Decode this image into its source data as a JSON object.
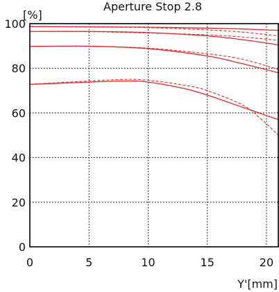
{
  "chart_data": {
    "type": "line",
    "title": "Aperture Stop 2.8",
    "ylabel": "[%]",
    "xlabel": "Y'[mm]",
    "xlim": [
      0,
      21
    ],
    "ylim": [
      0,
      100
    ],
    "x_ticks": [
      "0",
      "5",
      "10",
      "15",
      "20"
    ],
    "y_ticks": [
      "0",
      "20",
      "40",
      "60",
      "80",
      "100"
    ],
    "grid": true,
    "line_color": "#e0272a",
    "series": [
      {
        "style": "solid",
        "x": [
          0,
          5,
          10,
          15,
          18,
          21
        ],
        "y": [
          98.7,
          98.6,
          98.4,
          98.0,
          97.6,
          97.0
        ]
      },
      {
        "style": "dashed",
        "x": [
          0,
          5,
          10,
          15,
          18,
          21
        ],
        "y": [
          98.7,
          98.5,
          98.2,
          97.2,
          96.2,
          94.5
        ]
      },
      {
        "style": "solid",
        "x": [
          0,
          5,
          10,
          15,
          18,
          21
        ],
        "y": [
          96.5,
          96.5,
          96.0,
          94.5,
          92.8,
          90.5
        ]
      },
      {
        "style": "dashed",
        "x": [
          0,
          5,
          10,
          15,
          18,
          21
        ],
        "y": [
          96.5,
          96.4,
          95.8,
          95.0,
          94.0,
          92.5
        ]
      },
      {
        "style": "solid",
        "x": [
          0,
          5,
          10,
          15,
          18,
          21
        ],
        "y": [
          89.8,
          89.9,
          88.8,
          85.5,
          82.0,
          78.0
        ]
      },
      {
        "style": "dashed",
        "x": [
          0,
          5,
          10,
          15,
          18,
          21
        ],
        "y": [
          89.8,
          89.8,
          89.0,
          86.5,
          84.0,
          79.5
        ]
      },
      {
        "style": "solid",
        "x": [
          0,
          4,
          8,
          10,
          13,
          15,
          18,
          21
        ],
        "y": [
          72.8,
          73.6,
          74.3,
          73.8,
          71.0,
          68.0,
          62.5,
          57.0
        ]
      },
      {
        "style": "dashed",
        "x": [
          0,
          4,
          8,
          10,
          13,
          15,
          18,
          19.5,
          21
        ],
        "y": [
          72.8,
          74.0,
          75.0,
          74.6,
          72.5,
          70.0,
          63.5,
          57.5,
          50.0
        ]
      }
    ]
  }
}
